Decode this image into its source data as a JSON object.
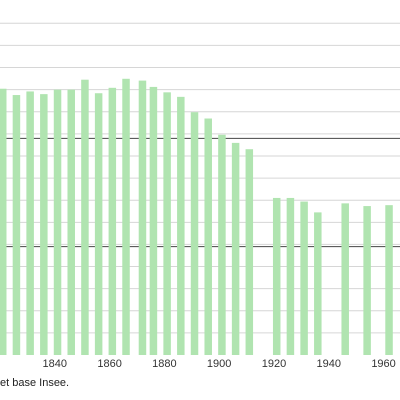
{
  "chart_data": {
    "type": "bar",
    "x_ticks": [
      1840,
      1860,
      1880,
      1900,
      1920,
      1940,
      1960
    ],
    "xlim": [
      1820,
      1966
    ],
    "ylim": [
      0,
      380
    ],
    "major_grid_y": [
      120,
      240
    ],
    "minor_grid_step": 24.5,
    "bar_color": "#b0e4b0",
    "values": [
      [
        1821,
        295
      ],
      [
        1826,
        288
      ],
      [
        1831,
        292
      ],
      [
        1836,
        289
      ],
      [
        1841,
        294
      ],
      [
        1846,
        294
      ],
      [
        1851,
        305
      ],
      [
        1856,
        290
      ],
      [
        1861,
        296
      ],
      [
        1866,
        306
      ],
      [
        1872,
        304
      ],
      [
        1876,
        297
      ],
      [
        1881,
        291
      ],
      [
        1886,
        286
      ],
      [
        1891,
        269
      ],
      [
        1896,
        262
      ],
      [
        1901,
        244
      ],
      [
        1906,
        235
      ],
      [
        1911,
        228
      ],
      [
        1921,
        174
      ],
      [
        1926,
        174
      ],
      [
        1931,
        170
      ],
      [
        1936,
        158
      ],
      [
        1946,
        168
      ],
      [
        1954,
        165
      ],
      [
        1962,
        166
      ]
    ]
  },
  "source_text": "et base Insee."
}
